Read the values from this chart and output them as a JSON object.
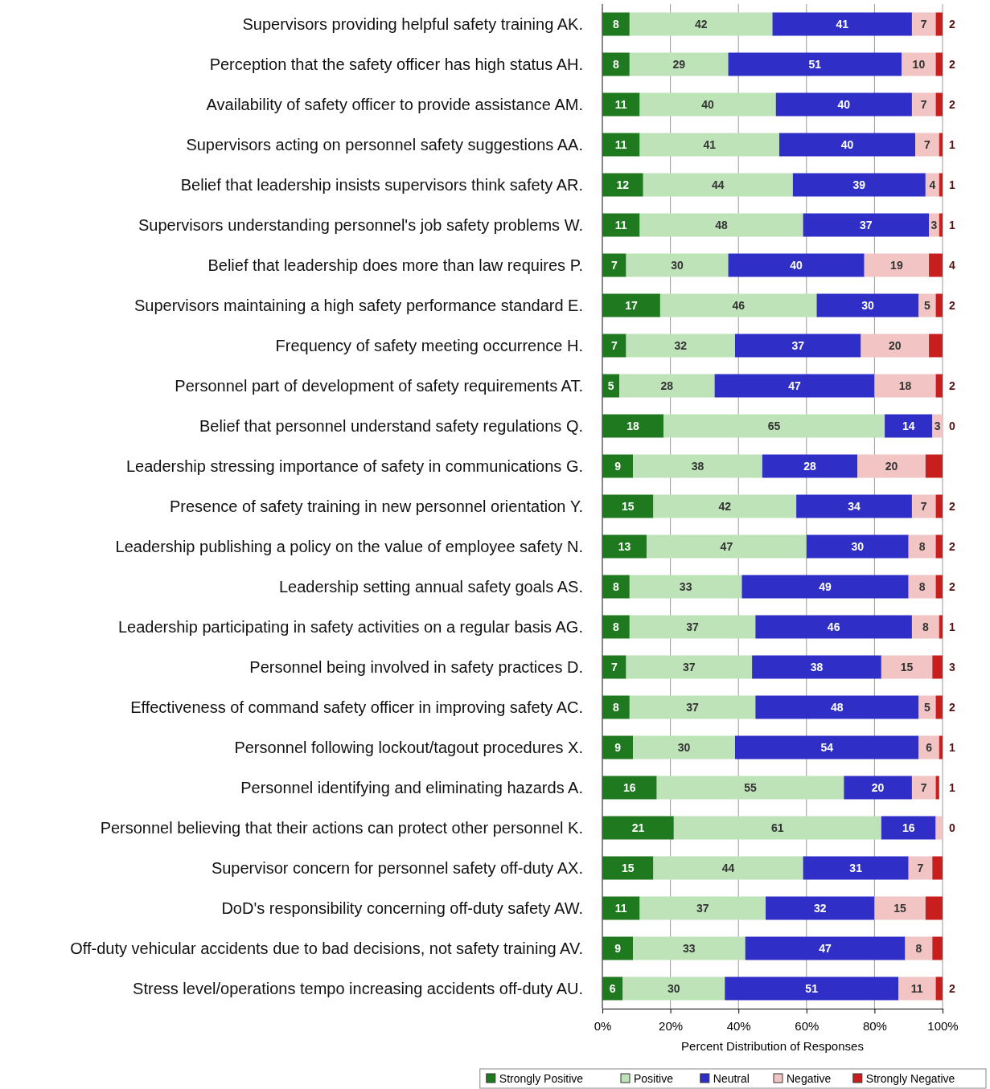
{
  "chart_data": {
    "type": "bar",
    "orientation": "horizontal",
    "stacked": true,
    "categories": [
      "Supervisors providing helpful safety training  AK.",
      "Perception that the safety officer has high status  AH.",
      "Availability of safety officer to provide assistance  AM.",
      "Supervisors acting on personnel safety suggestions  AA.",
      "Belief that leadership insists supervisors think safety  AR.",
      "Supervisors understanding personnel's job safety problems  W.",
      "Belief that leadership does more than law requires  P.",
      "Supervisors maintaining a high safety performance standard  E.",
      "Frequency of safety meeting occurrence  H.",
      "Personnel part of development of safety requirements  AT.",
      "Belief that personnel understand safety regulations  Q.",
      "Leadership stressing importance of safety in communications  G.",
      "Presence of safety training in new personnel orientation  Y.",
      "Leadership publishing a policy on the value of employee safety  N.",
      "Leadership setting annual safety goals  AS.",
      "Leadership participating in safety activities on a regular basis  AG.",
      "Personnel being involved in safety practices  D.",
      "Effectiveness of command safety officer in improving safety  AC.",
      "Personnel following lockout/tagout procedures  X.",
      "Personnel identifying and eliminating hazards  A.",
      "Personnel believing that their actions can protect other personnel  K.",
      "Supervisor concern for personnel safety off-duty  AX.",
      "DoD's responsibility concerning off-duty safety  AW.",
      "Off-duty vehicular accidents due to bad decisions, not safety training  AV.",
      "Stress level/operations tempo increasing accidents off-duty  AU."
    ],
    "series": [
      {
        "name": "Strongly Positive",
        "color": "#1f7a1f",
        "values": [
          8,
          8,
          11,
          11,
          12,
          11,
          7,
          17,
          7,
          5,
          18,
          9,
          15,
          13,
          8,
          8,
          7,
          8,
          9,
          16,
          21,
          15,
          11,
          9,
          6
        ],
        "value_labels": [
          "8",
          "8",
          "11",
          "11",
          "12",
          "11",
          "7",
          "17",
          "7",
          "5",
          "18",
          "9",
          "15",
          "13",
          "8",
          "8",
          "7",
          "8",
          "9",
          "16",
          "21",
          "15",
          "11",
          "9",
          "6"
        ]
      },
      {
        "name": "Positive",
        "color": "#bfe3b8",
        "values": [
          42,
          29,
          40,
          41,
          44,
          48,
          30,
          46,
          32,
          28,
          65,
          38,
          42,
          47,
          33,
          37,
          37,
          37,
          30,
          55,
          61,
          44,
          37,
          33,
          30
        ],
        "value_labels": [
          "42",
          "29",
          "40",
          "41",
          "44",
          "48",
          "30",
          "46",
          "32",
          "28",
          "65",
          "38",
          "42",
          "47",
          "33",
          "37",
          "37",
          "37",
          "30",
          "55",
          "61",
          "44",
          "37",
          "33",
          "30"
        ]
      },
      {
        "name": "Neutral",
        "color": "#2f2fc8",
        "values": [
          41,
          51,
          40,
          40,
          39,
          37,
          40,
          30,
          37,
          47,
          14,
          28,
          34,
          30,
          49,
          46,
          38,
          48,
          54,
          20,
          16,
          31,
          32,
          47,
          51
        ],
        "value_labels": [
          "41",
          "51",
          "40",
          "40",
          "39",
          "37",
          "40",
          "30",
          "37",
          "47",
          "14",
          "28",
          "34",
          "30",
          "49",
          "46",
          "38",
          "48",
          "54",
          "20",
          "16",
          "31",
          "32",
          "47",
          "51"
        ]
      },
      {
        "name": "Negative",
        "color": "#f2c4c4",
        "values": [
          7,
          10,
          7,
          7,
          4,
          3,
          19,
          5,
          20,
          18,
          3,
          20,
          7,
          8,
          8,
          8,
          15,
          5,
          6,
          7,
          2,
          7,
          15,
          8,
          11
        ],
        "value_labels": [
          "7",
          "10",
          "7",
          "7",
          "4",
          "3",
          "19",
          "5",
          "20",
          "18",
          "3",
          "20",
          "7",
          "8",
          "8",
          "8",
          "15",
          "5",
          "6",
          "7",
          null,
          "7",
          "15",
          "8",
          "11"
        ]
      },
      {
        "name": "Strongly Negative",
        "color": "#c81e1e",
        "values": [
          2,
          2,
          2,
          1,
          1,
          1,
          4,
          2,
          4,
          2,
          0,
          5,
          2,
          2,
          2,
          1,
          3,
          2,
          1,
          1,
          0,
          3,
          5,
          3,
          2
        ],
        "value_labels": [
          "2",
          "2",
          "2",
          "1",
          "1",
          "1",
          "4",
          "2",
          null,
          "2",
          "0",
          null,
          "2",
          "2",
          "2",
          "1",
          "3",
          "2",
          "1",
          "1",
          "0",
          null,
          null,
          null,
          "2"
        ]
      }
    ],
    "xlim": [
      0,
      100
    ],
    "xticks": [
      {
        "value": 0,
        "label": "0%"
      },
      {
        "value": 20,
        "label": "20%"
      },
      {
        "value": 40,
        "label": "40%"
      },
      {
        "value": 60,
        "label": "60%"
      },
      {
        "value": 80,
        "label": "80%"
      },
      {
        "value": 100,
        "label": "100%"
      }
    ],
    "xlabel": "Percent Distribution of Responses",
    "grid": "x",
    "legend": "bottom"
  }
}
